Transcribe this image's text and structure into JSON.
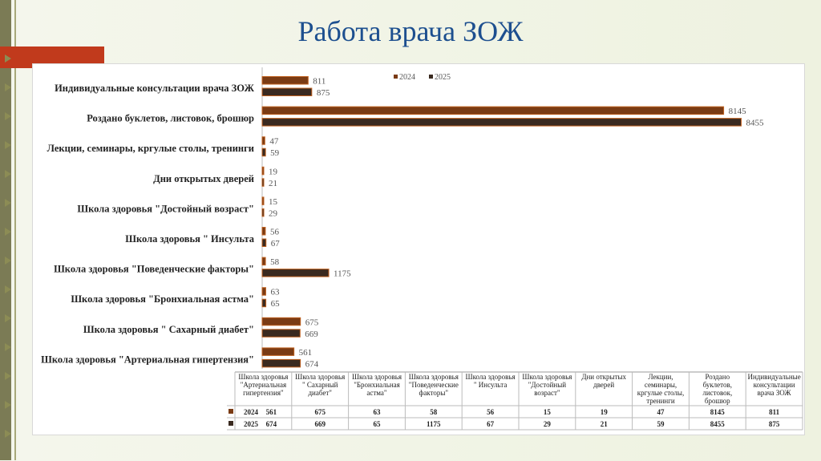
{
  "slide": {
    "title": "Работа врача ЗОЖ"
  },
  "colors": {
    "series_2024": "#7a3b14",
    "series_2025": "#3a2a20",
    "bar_outline": "#c0611f",
    "title": "#1d4f8f",
    "accent": "#c13a1c"
  },
  "chart_data": {
    "type": "bar",
    "orientation": "horizontal",
    "categories": [
      "Индивидуальные консультации врача ЗОЖ",
      "Роздано буклетов, листовок, брошюр",
      "Лекции, семинары, кргулые столы, тренинги",
      "Дни открытых дверей",
      "Школа здоровья \"Достойный возраст\"",
      "Школа здоровья \" Инсульта",
      "Школа здоровья \"Поведенческие факторы\"",
      "Школа здоровья \"Бронхиальная астма\"",
      "Школа здоровья \" Сахарный диабет\"",
      "Школа здоровья \"Артериальная гипертензия\""
    ],
    "series": [
      {
        "name": "2024",
        "values": [
          811,
          8145,
          47,
          19,
          15,
          56,
          58,
          63,
          675,
          561
        ]
      },
      {
        "name": "2025",
        "values": [
          875,
          8455,
          59,
          21,
          29,
          67,
          1175,
          65,
          669,
          674
        ]
      }
    ],
    "xlim": [
      0,
      9000
    ],
    "legend": "top",
    "data_table": {
      "columns": [
        "Школа здоровья \"Артериальная гипертензия\"",
        "Школа здоровья \" Сахарный диабет\"",
        "Школа здоровья \"Бронхиальная астма\"",
        "Школа здоровья \"Поведенческие факторы\"",
        "Школа здоровья \" Инсульта",
        "Школа здоровья \"Достойный возраст\"",
        "Дни открытых дверей",
        "Лекции, семинары, кргулые столы, тренинги",
        "Роздано буклетов, листовок, брошюр",
        "Индивидуальные консультации врача ЗОЖ"
      ],
      "rows": [
        {
          "label": "2024",
          "values": [
            561,
            675,
            63,
            58,
            56,
            15,
            19,
            47,
            8145,
            811
          ]
        },
        {
          "label": "2025",
          "values": [
            674,
            669,
            65,
            1175,
            67,
            29,
            21,
            59,
            8455,
            875
          ]
        }
      ]
    }
  }
}
